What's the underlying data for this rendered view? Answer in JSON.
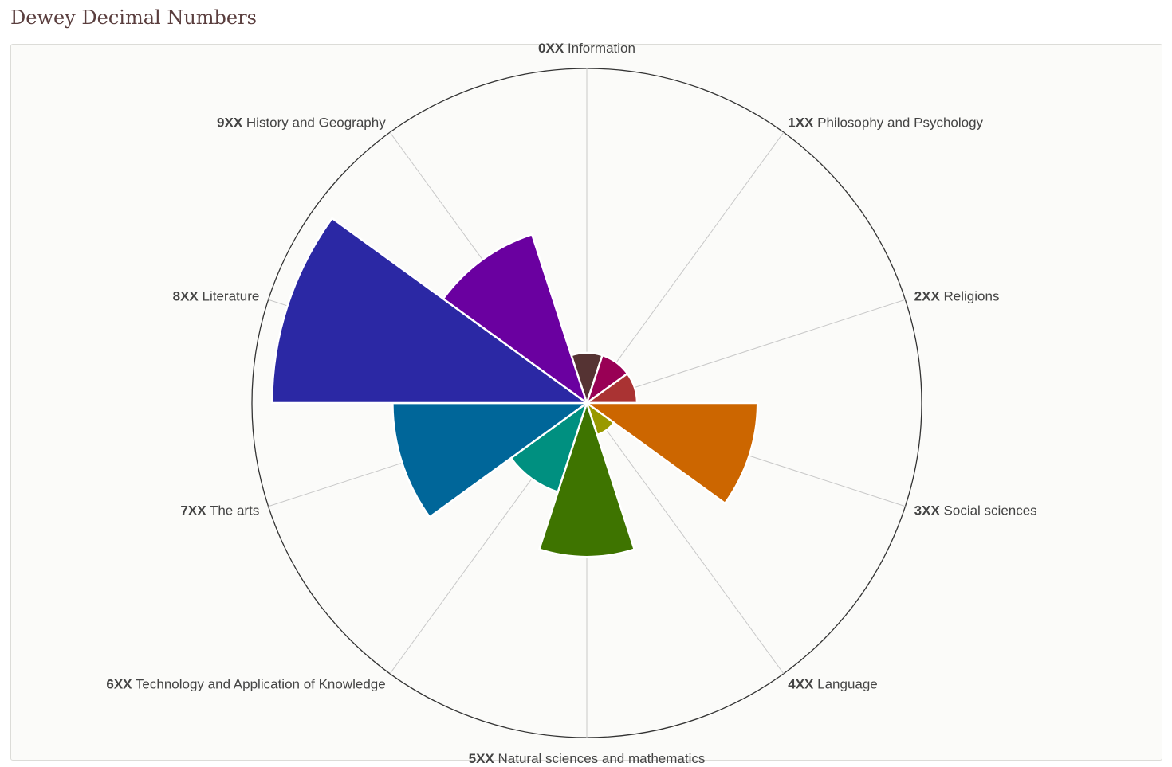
{
  "page": {
    "title": "Dewey Decimal Numbers"
  },
  "chart_data": {
    "type": "polar-area",
    "title": "Dewey Decimal Numbers",
    "categories": [
      {
        "code": "0XX",
        "name": "Information",
        "value": 15,
        "color": "#553333"
      },
      {
        "code": "1XX",
        "name": "Philosophy and Psychology",
        "value": 15,
        "color": "#990055"
      },
      {
        "code": "2XX",
        "name": "Religions",
        "value": 15,
        "color": "#aa3333"
      },
      {
        "code": "3XX",
        "name": "Social sciences",
        "value": 51,
        "color": "#cc6600"
      },
      {
        "code": "4XX",
        "name": "Language",
        "value": 10,
        "color": "#999900"
      },
      {
        "code": "5XX",
        "name": "Natural sciences and mathematics",
        "value": 46,
        "color": "#3e7400"
      },
      {
        "code": "6XX",
        "name": "Technology and Application of Knowledge",
        "value": 28,
        "color": "#009080"
      },
      {
        "code": "7XX",
        "name": "The arts",
        "value": 58,
        "color": "#006699"
      },
      {
        "code": "8XX",
        "name": "Literature",
        "value": 94,
        "color": "#2b28a4"
      },
      {
        "code": "9XX",
        "name": "History and Geography",
        "value": 53,
        "color": "#6a00a0"
      }
    ],
    "rlim": [
      0,
      100
    ],
    "grid": true,
    "legend": "none"
  }
}
